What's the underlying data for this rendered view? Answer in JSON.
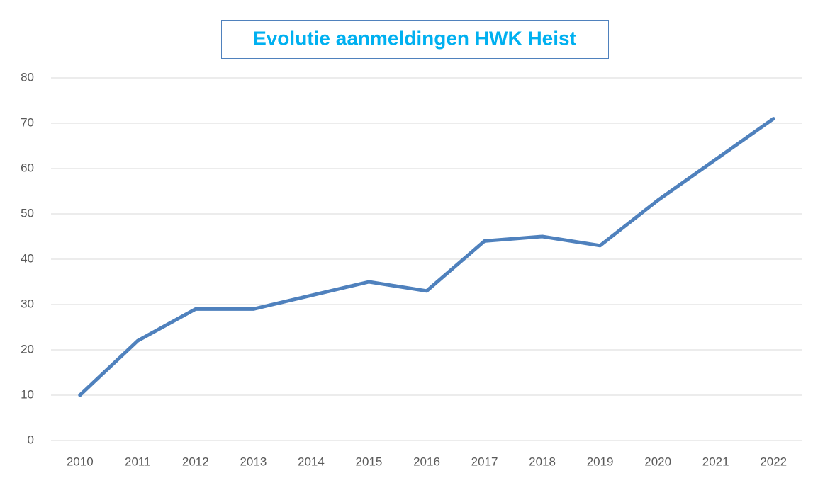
{
  "chart_data": {
    "type": "line",
    "title": "Evolutie aanmeldingen HWK Heist",
    "categories": [
      "2010",
      "2011",
      "2012",
      "2013",
      "2014",
      "2015",
      "2016",
      "2017",
      "2018",
      "2019",
      "2020",
      "2021",
      "2022"
    ],
    "values": [
      10,
      22,
      29,
      29,
      32,
      35,
      33,
      44,
      45,
      43,
      53,
      62,
      71
    ],
    "color": "#4f81bd",
    "ylim": [
      0,
      80
    ],
    "yticks": [
      0,
      10,
      20,
      30,
      40,
      50,
      60,
      70,
      80
    ],
    "grid": true
  }
}
